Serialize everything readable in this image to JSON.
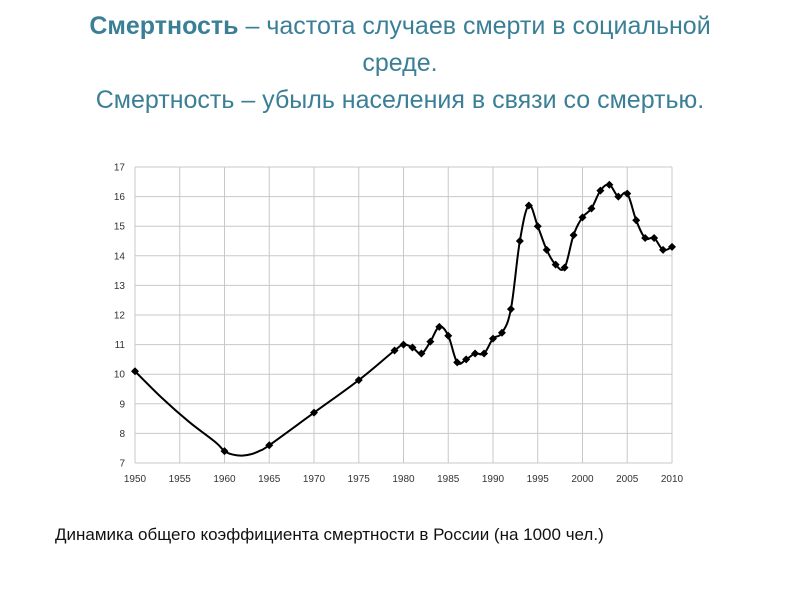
{
  "heading": {
    "line1_bold": "Смертность",
    "line1_rest": " – частота случаев смерти в социальной среде.",
    "line2": "Смертность – убыль населения в связи со смертью."
  },
  "caption": "Динамика общего коэффициента смертности в России (на 1000 чел.)",
  "colors": {
    "heading": "#3a7f96",
    "line": "#000000",
    "grid": "#c8c8c8"
  },
  "chart_data": {
    "type": "line",
    "title": "",
    "xlabel": "",
    "ylabel": "",
    "xlim": [
      1950,
      2010
    ],
    "ylim": [
      7,
      17
    ],
    "x_ticks": [
      1950,
      1955,
      1960,
      1965,
      1970,
      1975,
      1980,
      1985,
      1990,
      1995,
      2000,
      2005,
      2010
    ],
    "y_ticks": [
      7,
      8,
      9,
      10,
      11,
      12,
      13,
      14,
      15,
      16,
      17
    ],
    "grid": true,
    "legend": "none",
    "series": [
      {
        "smooth_curve_years": [
          1950,
          1953,
          1956,
          1959,
          1960,
          1961,
          1962,
          1963,
          1964,
          1965,
          1970,
          1975
        ],
        "smooth_curve_values": [
          10.1,
          9.2,
          8.4,
          7.7,
          7.4,
          7.28,
          7.25,
          7.3,
          7.42,
          7.6,
          8.7,
          9.8
        ],
        "x": [
          1950,
          1960,
          1965,
          1970,
          1975,
          1979,
          1980,
          1981,
          1982,
          1983,
          1984,
          1985,
          1986,
          1987,
          1988,
          1989,
          1990,
          1991,
          1992,
          1993,
          1994,
          1995,
          1996,
          1997,
          1998,
          1999,
          2000,
          2001,
          2002,
          2003,
          2004,
          2005,
          2006,
          2007,
          2008,
          2009,
          2010
        ],
        "y": [
          10.1,
          7.4,
          7.6,
          8.7,
          9.8,
          10.8,
          11.0,
          10.9,
          10.7,
          11.1,
          11.6,
          11.3,
          10.4,
          10.5,
          10.7,
          10.7,
          11.2,
          11.4,
          12.2,
          14.5,
          15.7,
          15.0,
          14.2,
          13.7,
          13.6,
          14.7,
          15.3,
          15.6,
          16.2,
          16.4,
          16.0,
          16.1,
          15.2,
          14.6,
          14.6,
          14.2,
          14.3
        ]
      }
    ]
  }
}
